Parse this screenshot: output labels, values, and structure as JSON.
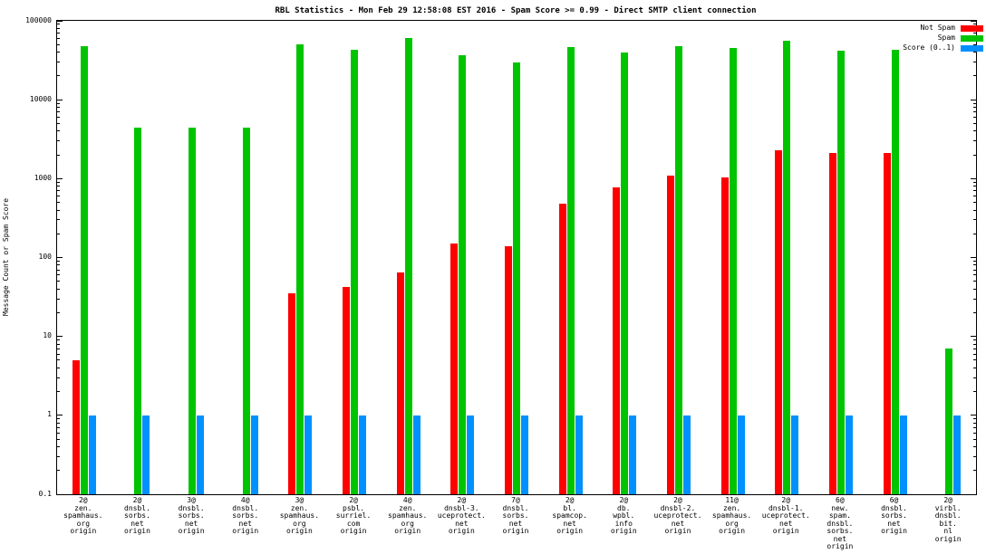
{
  "chart_data": {
    "type": "bar",
    "title": "RBL Statistics - Mon Feb 29 12:58:08 EST 2016 - Spam Score >= 0.99 - Direct SMTP client connection",
    "ylabel": "Message Count or Spam Score",
    "y_scale": "log",
    "ylim": [
      0.1,
      100000
    ],
    "grid": false,
    "legend_position": "top-right",
    "y_ticks": [
      {
        "value": 100000,
        "label": "100000"
      },
      {
        "value": 10000,
        "label": "10000"
      },
      {
        "value": 1000,
        "label": "1000"
      },
      {
        "value": 100,
        "label": "100"
      },
      {
        "value": 10,
        "label": "10"
      },
      {
        "value": 1,
        "label": "1"
      },
      {
        "value": 0.1,
        "label": "0.1"
      }
    ],
    "categories": [
      [
        "2@",
        "zen.",
        "spamhaus.",
        "org",
        "origin"
      ],
      [
        "2@",
        "dnsbl.",
        "sorbs.",
        "net",
        "origin"
      ],
      [
        "3@",
        "dnsbl.",
        "sorbs.",
        "net",
        "origin"
      ],
      [
        "4@",
        "dnsbl.",
        "sorbs.",
        "net",
        "origin"
      ],
      [
        "3@",
        "zen.",
        "spamhaus.",
        "org",
        "origin"
      ],
      [
        "2@",
        "psbl.",
        "surriel.",
        "com",
        "origin"
      ],
      [
        "4@",
        "zen.",
        "spamhaus.",
        "org",
        "origin"
      ],
      [
        "2@",
        "dnsbl-3.",
        "uceprotect.",
        "net",
        "origin"
      ],
      [
        "7@",
        "dnsbl.",
        "sorbs.",
        "net",
        "origin"
      ],
      [
        "2@",
        "bl.",
        "spamcop.",
        "net",
        "origin"
      ],
      [
        "2@",
        "db.",
        "wpbl.",
        "info",
        "origin"
      ],
      [
        "2@",
        "dnsbl-2.",
        "uceprotect.",
        "net",
        "origin"
      ],
      [
        "11@",
        "zen.",
        "spamhaus.",
        "org",
        "origin"
      ],
      [
        "2@",
        "dnsbl-1.",
        "uceprotect.",
        "net",
        "origin"
      ],
      [
        "6@",
        "new.",
        "spam.",
        "dnsbl.",
        "sorbs.",
        "net",
        "origin"
      ],
      [
        "6@",
        "dnsbl.",
        "sorbs.",
        "net",
        "origin"
      ],
      [
        "2@",
        "virbl.",
        "dnsbl.",
        "bit.",
        "nl",
        "origin"
      ]
    ],
    "series": [
      {
        "name": "Not Spam",
        "color": "#ff0000",
        "values": [
          5,
          0,
          0,
          0,
          35,
          42,
          65,
          150,
          140,
          480,
          780,
          1100,
          1050,
          2300,
          2100,
          2100,
          0
        ]
      },
      {
        "name": "Spam",
        "color": "#00c400",
        "values": [
          48000,
          4400,
          4400,
          4400,
          51000,
          43000,
          60000,
          37000,
          30000,
          46000,
          40000,
          48000,
          45000,
          56000,
          42000,
          43000,
          7
        ]
      },
      {
        "name": "Score (0..1)",
        "color": "#0090ff",
        "values": [
          1,
          1,
          1,
          1,
          1,
          1,
          1,
          1,
          1,
          1,
          1,
          1,
          1,
          1,
          1,
          1,
          1
        ]
      }
    ]
  }
}
